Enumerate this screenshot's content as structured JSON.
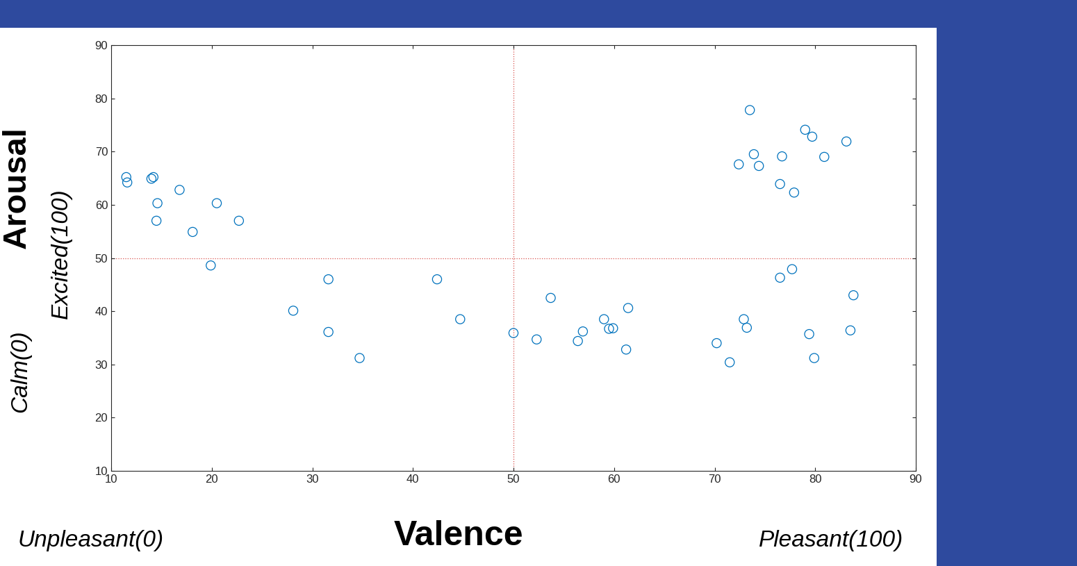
{
  "chart_data": {
    "type": "scatter",
    "texts": {
      "y_title": "Arousal",
      "y_high": "Excited(100)",
      "y_low": "Calm(0)",
      "x_title": "Valence",
      "x_low": "Unpleasant(0)",
      "x_high": "Pleasant(100)"
    },
    "x": [
      11.5,
      11.6,
      14.0,
      14.2,
      14.6,
      14.5,
      16.8,
      18.1,
      20.5,
      22.7,
      19.9,
      28.1,
      31.6,
      31.6,
      34.7,
      42.4,
      44.7,
      50.0,
      52.3,
      53.7,
      56.4,
      56.9,
      59.0,
      59.5,
      59.9,
      61.2,
      61.4,
      70.2,
      71.5,
      72.9,
      73.2,
      76.5,
      77.7,
      79.4,
      79.9,
      83.5,
      83.8,
      72.4,
      73.5,
      73.9,
      74.4,
      76.5,
      76.7,
      77.9,
      79.0,
      79.7,
      80.9,
      83.1
    ],
    "values": [
      65.2,
      64.2,
      64.9,
      65.2,
      60.3,
      57.0,
      62.8,
      54.9,
      60.3,
      57.0,
      48.6,
      40.1,
      46.0,
      36.1,
      31.2,
      46.0,
      38.5,
      35.9,
      34.7,
      42.5,
      34.4,
      36.2,
      38.5,
      36.7,
      36.8,
      32.8,
      40.6,
      34.0,
      30.4,
      38.5,
      36.9,
      46.3,
      47.9,
      35.7,
      31.2,
      36.4,
      43.0,
      67.6,
      77.8,
      69.5,
      67.3,
      63.9,
      69.1,
      62.3,
      74.1,
      72.8,
      69.0,
      71.9
    ],
    "color": "#0072bd",
    "marker": "o",
    "reference_lines": {
      "x": 50,
      "y": 50
    },
    "xlim": [
      10,
      90
    ],
    "ylim": [
      10,
      90
    ],
    "xticks": [
      10,
      20,
      30,
      40,
      50,
      60,
      70,
      80,
      90
    ],
    "yticks": [
      10,
      20,
      30,
      40,
      50,
      60,
      70,
      80,
      90
    ],
    "grid": false
  }
}
